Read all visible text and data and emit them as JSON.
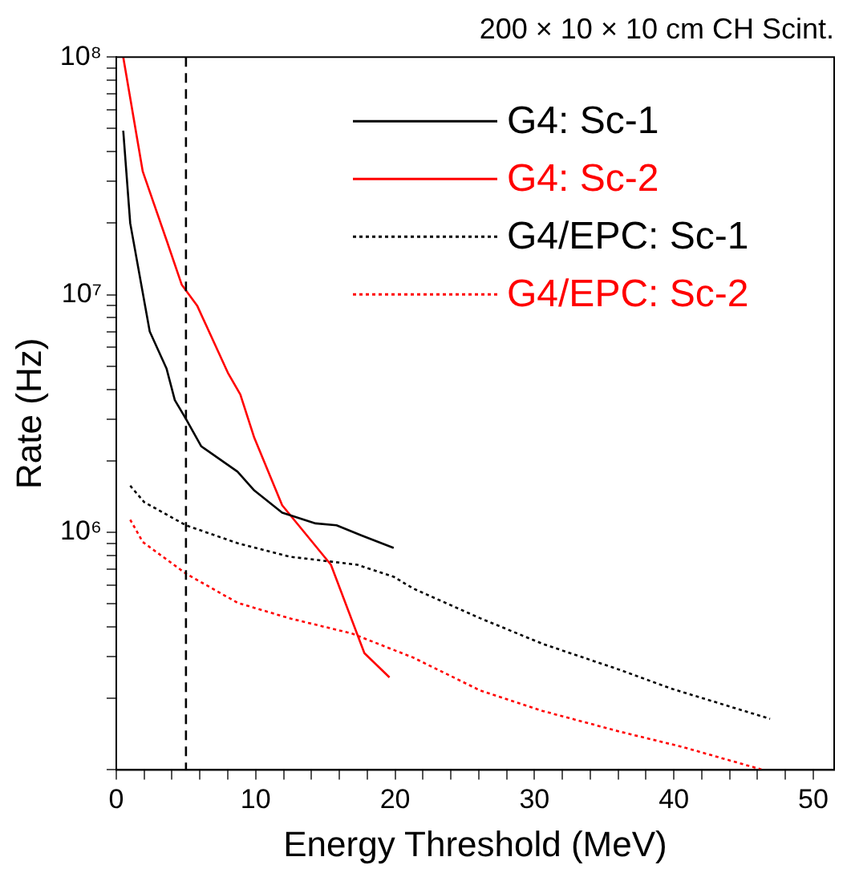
{
  "chart_data": {
    "type": "line",
    "title": "200 × 10 × 10 cm CH Scint.",
    "xlabel": "Energy Threshold (MeV)",
    "ylabel": "Rate (Hz)",
    "log": "y",
    "xlim": [
      0,
      51.5
    ],
    "ylim": [
      100000,
      100000000
    ],
    "xticks": [
      0,
      {
        "value": 2,
        "label": null
      },
      {
        "value": 4,
        "label": null
      },
      {
        "value": 6,
        "label": null
      },
      {
        "value": 8,
        "label": null
      },
      10,
      {
        "value": 12,
        "label": null
      },
      {
        "value": 14,
        "label": null
      },
      {
        "value": 16,
        "label": null
      },
      {
        "value": 18,
        "label": null
      },
      20,
      {
        "value": 22,
        "label": null
      },
      {
        "value": 24,
        "label": null
      },
      {
        "value": 26,
        "label": null
      },
      {
        "value": 28,
        "label": null
      },
      30,
      {
        "value": 32,
        "label": null
      },
      {
        "value": 34,
        "label": null
      },
      {
        "value": 36,
        "label": null
      },
      {
        "value": 38,
        "label": null
      },
      40,
      {
        "value": 42,
        "label": null
      },
      {
        "value": 44,
        "label": null
      },
      {
        "value": 46,
        "label": null
      },
      {
        "value": 48,
        "label": null
      },
      50
    ],
    "yticks": [
      {
        "value": 100000,
        "label": null
      },
      {
        "value": 200000,
        "label": null
      },
      {
        "value": 300000,
        "label": null
      },
      {
        "value": 400000,
        "label": null
      },
      {
        "value": 500000,
        "label": null
      },
      {
        "value": 600000,
        "label": null
      },
      {
        "value": 700000,
        "label": null
      },
      {
        "value": 800000,
        "label": null
      },
      {
        "value": 900000,
        "label": null
      },
      {
        "value": 1000000,
        "label": "10⁶"
      },
      {
        "value": 2000000,
        "label": null
      },
      {
        "value": 3000000,
        "label": null
      },
      {
        "value": 4000000,
        "label": null
      },
      {
        "value": 5000000,
        "label": null
      },
      {
        "value": 6000000,
        "label": null
      },
      {
        "value": 7000000,
        "label": null
      },
      {
        "value": 8000000,
        "label": null
      },
      {
        "value": 9000000,
        "label": null
      },
      {
        "value": 10000000,
        "label": "10⁷"
      },
      {
        "value": 20000000,
        "label": null
      },
      {
        "value": 30000000,
        "label": null
      },
      {
        "value": 40000000,
        "label": null
      },
      {
        "value": 50000000,
        "label": null
      },
      {
        "value": 60000000,
        "label": null
      },
      {
        "value": 70000000,
        "label": null
      },
      {
        "value": 80000000,
        "label": null
      },
      {
        "value": 90000000,
        "label": null
      },
      {
        "value": 100000000,
        "label": "10⁸"
      }
    ],
    "grid": false,
    "legend": "top right",
    "marker": "none",
    "ref_lines": [
      {
        "axis": "x",
        "value": 5,
        "color": "#000000",
        "line_style": "dashed"
      }
    ],
    "series": [
      {
        "name": "G4: Sc-1",
        "color": "#000000",
        "line_style": "solid",
        "x": [
          0.5,
          1.0,
          2.4,
          3.6,
          4.2,
          5,
          6.1,
          8.7,
          9.9,
          11.9,
          14.3,
          15.8,
          17.6,
          19.9
        ],
        "values": [
          49000000,
          20000000,
          7000000,
          4900000,
          3600000,
          3000000,
          2300000,
          1800000,
          1500000,
          1210000,
          1090000,
          1070000,
          970000,
          860000
        ]
      },
      {
        "name": "G4: Sc-2",
        "color": "#ff0000",
        "line_style": "solid",
        "x": [
          0.5,
          1.9,
          3.6,
          4.7,
          5.8,
          8,
          8.9,
          9.9,
          11.9,
          15.4,
          17.8,
          19.6
        ],
        "values": [
          100000000,
          33000000,
          17000000,
          11000000,
          9000000,
          4700000,
          3800000,
          2500000,
          1300000,
          730000,
          310000,
          245000
        ]
      },
      {
        "name": "G4/EPC: Sc-1",
        "color": "#000000",
        "line_style": "dotted",
        "x": [
          1,
          2,
          5,
          8.7,
          12.4,
          17.3,
          19.9,
          21.3,
          26.1,
          30.6,
          36.1,
          39.8,
          46.9
        ],
        "values": [
          1570000,
          1340000,
          1070000,
          900000,
          790000,
          730000,
          650000,
          580000,
          435000,
          339000,
          264000,
          220000,
          164000
        ]
      },
      {
        "name": "G4/EPC: Sc-2",
        "color": "#ff0000",
        "line_style": "dotted",
        "x": [
          1,
          1.9,
          5,
          8.7,
          12.4,
          16.9,
          21.3,
          26.1,
          30.6,
          36.1,
          40.6,
          46.4
        ],
        "values": [
          1130000,
          910000,
          670000,
          505000,
          435000,
          375000,
          297000,
          216000,
          177000,
          145000,
          125000,
          100000
        ]
      }
    ]
  }
}
